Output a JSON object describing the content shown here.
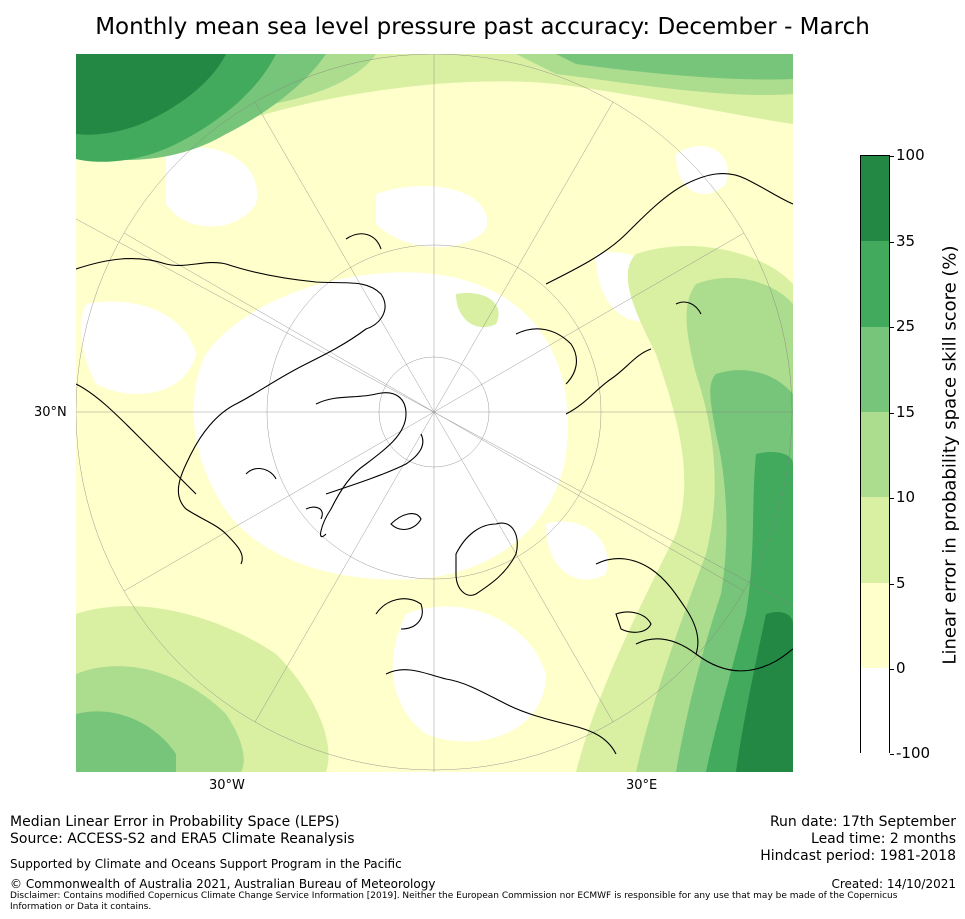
{
  "title": "Monthly mean sea level pressure past accuracy: December - March",
  "map": {
    "projection": "North polar stereographic",
    "lat_label": "30°N",
    "lon_labels": [
      "30°W",
      "30°E"
    ]
  },
  "colorbar": {
    "label": "Linear error in probability space skill score (%)",
    "ticks": [
      "100",
      "35",
      "25",
      "15",
      "10",
      "5",
      "0",
      "-100"
    ],
    "bins": [
      {
        "range": "35 to 100",
        "color": "#228844"
      },
      {
        "range": "25 to 35",
        "color": "#41aa5d"
      },
      {
        "range": "15 to 25",
        "color": "#77c57a"
      },
      {
        "range": "10 to 15",
        "color": "#acdc8e"
      },
      {
        "range": "5 to 10",
        "color": "#d9f0a3"
      },
      {
        "range": "0 to 5",
        "color": "#ffffcc"
      },
      {
        "range": "-100 to 0",
        "color": "#ffffff"
      }
    ]
  },
  "footer": {
    "line1": "Median Linear Error in Probability Space (LEPS)",
    "line2": "Source: ACCESS-S2 and ERA5 Climate Reanalysis",
    "support": "Supported by Climate and Oceans Support Program in the Pacific",
    "copyright": "© Commonwealth of Australia 2021, Australian Bureau of Meteorology",
    "disclaimer": "Disclaimer: Contains modified Copernicus Climate Change Service Information [2019]. Neither the European Commission nor ECMWF is responsible for any use that may be made of the Copernicus Information or Data it contains.",
    "run_date": "Run date: 17th September",
    "lead_time": "Lead time: 2 months",
    "hindcast": "Hindcast period: 1981-2018",
    "created": "Created: 14/10/2021"
  }
}
